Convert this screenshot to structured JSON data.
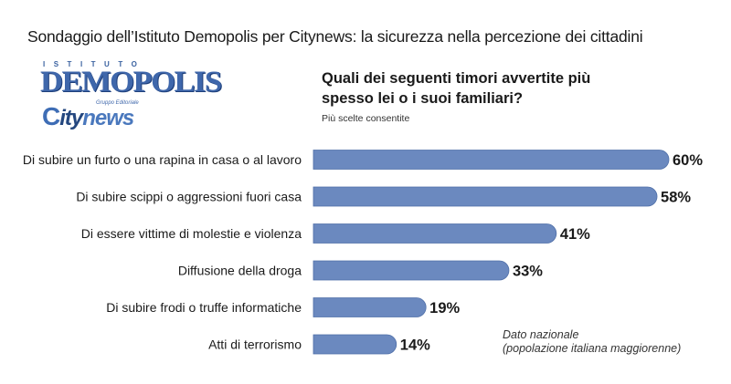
{
  "header": {
    "title": "Sondaggio dell’Istituto Demopolis per Citynews: la sicurezza nella percezione dei cittadini"
  },
  "logos": {
    "istituto": "ISTITUTO",
    "demopolis": "DEMOPOLIS",
    "gruppo": "Gruppo Editoriale",
    "city_c": "C",
    "city_ity": "ity",
    "city_news": "news"
  },
  "question": {
    "line1": "Quali dei seguenti timori avvertite più",
    "line2": "spesso lei o i suoi familiari?",
    "note": "Più scelte consentite"
  },
  "footnote": {
    "line1": "Dato nazionale",
    "line2": "(popolazione italiana maggiorenne)"
  },
  "colors": {
    "bar": "#6b89bf",
    "bar_edge": "#4f6fa8"
  },
  "chart_data": {
    "type": "bar",
    "orientation": "horizontal",
    "categories": [
      "Di subire un furto o una rapina in casa o al lavoro",
      "Di subire scippi o aggressioni fuori casa",
      "Di essere vittime di molestie e violenza",
      "Diffusione della droga",
      "Di subire frodi o truffe informatiche",
      "Atti di terrorismo"
    ],
    "values": [
      60,
      58,
      41,
      33,
      19,
      14
    ],
    "value_labels": [
      "60%",
      "58%",
      "41%",
      "33%",
      "19%",
      "14%"
    ],
    "unit": "%",
    "xlim": [
      0,
      60
    ],
    "grid": false,
    "legend": "none"
  }
}
